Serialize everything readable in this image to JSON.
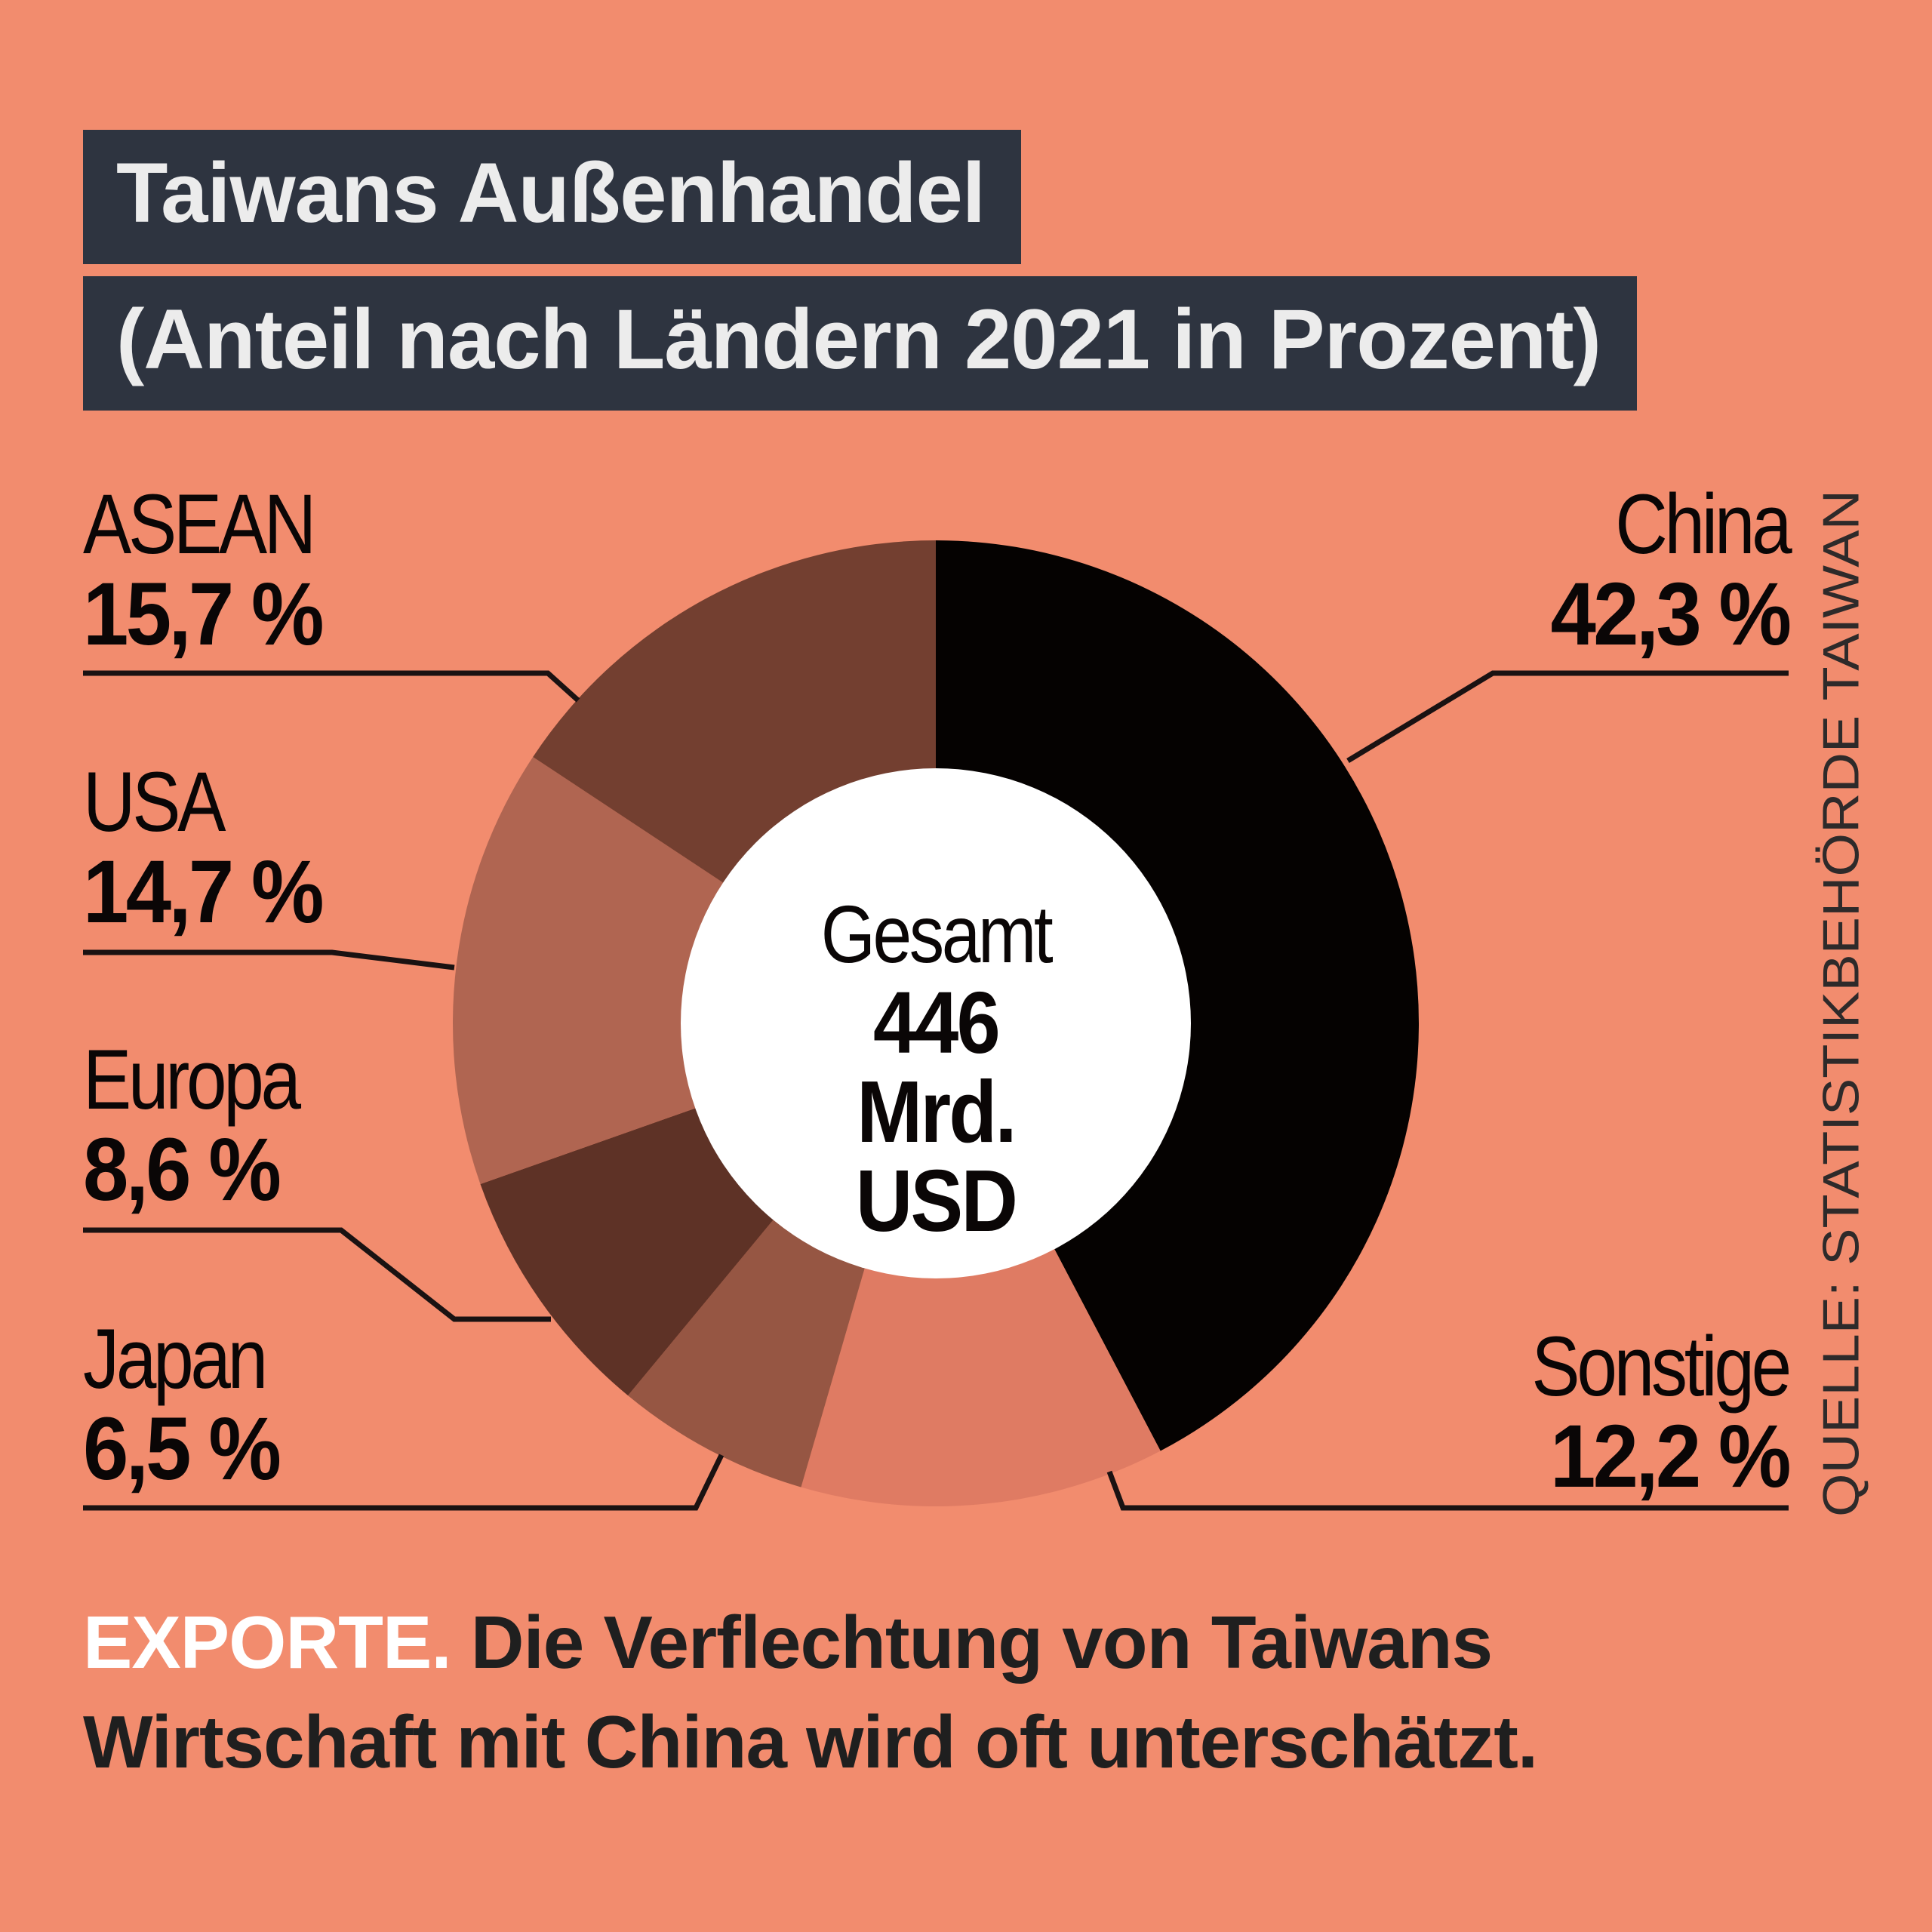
{
  "title_line1": "Taiwans Außenhandel",
  "title_line2": "(Anteil nach Ländern 2021 in Prozent)",
  "center": {
    "line1": "Gesamt",
    "line2": "446 Mrd.",
    "line3": "USD"
  },
  "source": "QUELLE: STATISTIKBEHÖRDE TAIWAN",
  "caption": {
    "keyword": "EXPORTE.",
    "text": "Die Verflechtung von Taiwans Wirtschaft mit China wird oft unterschätzt."
  },
  "colors": {
    "background": "#f28c6e",
    "title_box": "#2e3440",
    "China": "#050201",
    "Sonstige": "#df7b63",
    "Japan": "#965643",
    "Europa": "#5e3226",
    "USA": "#b06551",
    "ASEAN": "#733f30"
  },
  "chart_data": {
    "type": "pie",
    "donut": true,
    "slices": [
      {
        "name": "China",
        "value": 42.3,
        "label": "42,3 %"
      },
      {
        "name": "Sonstige",
        "value": 12.2,
        "label": "12,2 %"
      },
      {
        "name": "Japan",
        "value": 6.5,
        "label": "6,5 %"
      },
      {
        "name": "Europa",
        "value": 8.6,
        "label": "8,6 %"
      },
      {
        "name": "USA",
        "value": 14.7,
        "label": "14,7 %"
      },
      {
        "name": "ASEAN",
        "value": 15.7,
        "label": "15,7 %"
      }
    ]
  }
}
